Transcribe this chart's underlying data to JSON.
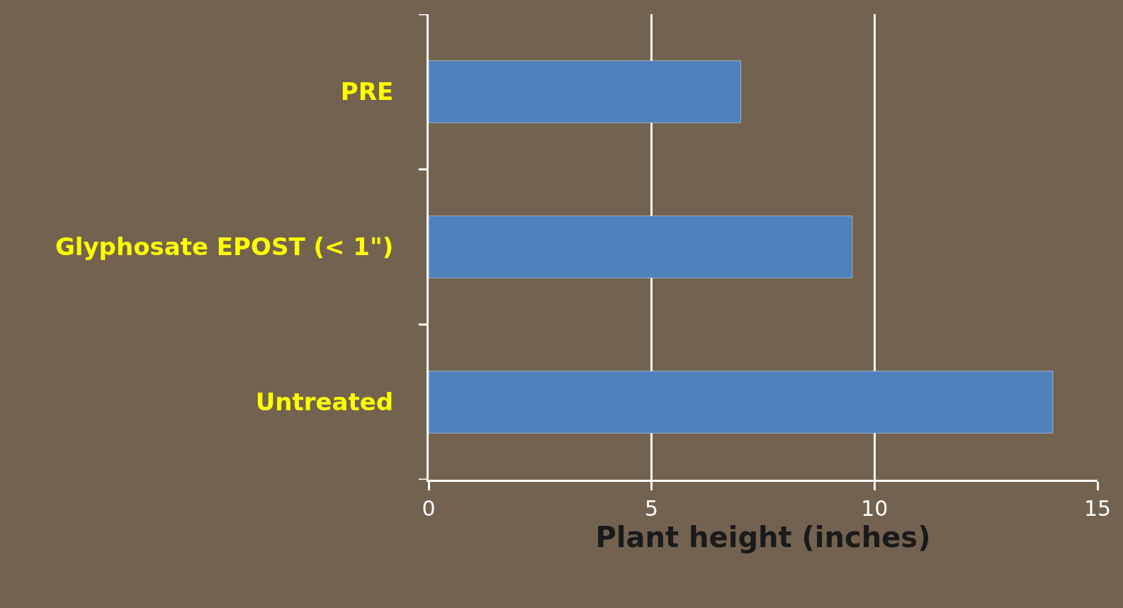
{
  "chart_data": {
    "type": "bar",
    "orientation": "horizontal",
    "xlabel": "Plant height (inches)",
    "categories": [
      "PRE",
      "Glyphosate EPOST (< 1\")",
      "Untreated"
    ],
    "values": [
      7,
      9.5,
      14
    ],
    "color": "#4f81bd",
    "xlim": [
      0,
      15
    ],
    "xticks": [
      0,
      5,
      10,
      15
    ],
    "grid": "x"
  }
}
